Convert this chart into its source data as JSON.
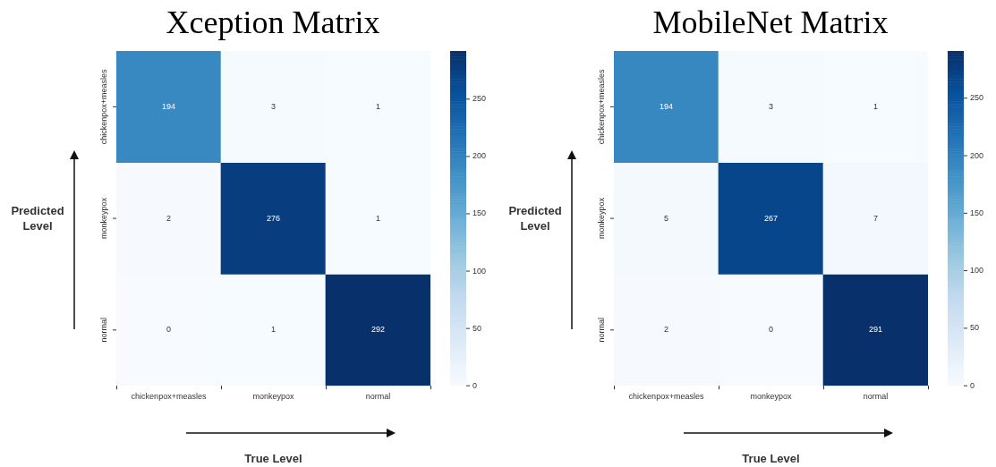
{
  "chart_data": [
    {
      "type": "heatmap",
      "title": "Xception Matrix",
      "xlabel": "True Level",
      "ylabel": "Predicted Level",
      "categories": [
        "chickenpox+measles",
        "monkeypox",
        "normal"
      ],
      "y_categories": [
        "chickenpox+measles",
        "monkeypox",
        "normal"
      ],
      "cells": [
        [
          194,
          3,
          1
        ],
        [
          2,
          276,
          1
        ],
        [
          0,
          1,
          292
        ]
      ],
      "clim": [
        0,
        292
      ],
      "cticks": [
        0,
        50,
        100,
        150,
        200,
        250
      ],
      "data_labels": true
    },
    {
      "type": "heatmap",
      "title": "MobileNet Matrix",
      "xlabel": "True Level",
      "ylabel": "Predicted Level",
      "categories": [
        "chickenpox+measles",
        "monkeypox",
        "normal"
      ],
      "y_categories": [
        "chickenpox+measles",
        "monkeypox",
        "normal"
      ],
      "cells": [
        [
          194,
          3,
          1
        ],
        [
          5,
          267,
          7
        ],
        [
          2,
          0,
          291
        ]
      ],
      "clim": [
        0,
        291
      ],
      "cticks": [
        0,
        50,
        100,
        150,
        200,
        250
      ],
      "data_labels": true
    }
  ]
}
